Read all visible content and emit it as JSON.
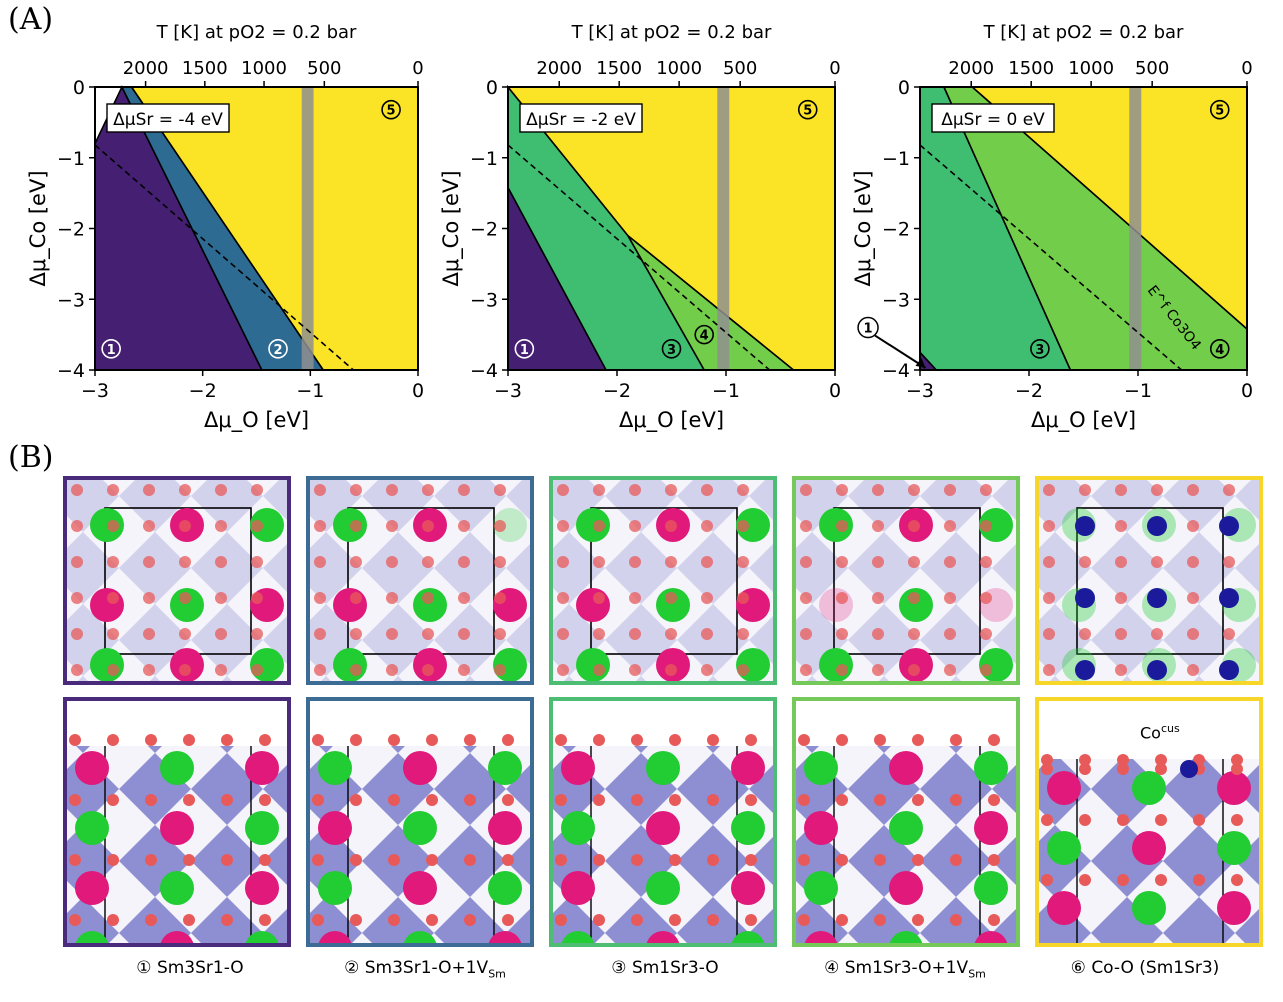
{
  "panelA": {
    "letter": "(A)",
    "top_axis_label": "T [K] at pO2 = 0.2 bar",
    "x_label": "Δμ_O [eV]",
    "y_label": "Δμ_Co [eV]",
    "top_ticks": [
      "2000",
      "1500",
      "1000",
      "500",
      "0"
    ],
    "top_tick_T": [
      2000,
      1500,
      1000,
      500,
      0
    ],
    "x_ticks": [
      "−3",
      "−2",
      "−1",
      "0"
    ],
    "y_ticks": [
      "0",
      "−1",
      "−2",
      "−3",
      "−4"
    ],
    "colors": {
      "phase1": "#451f72",
      "phase2": "#2d6b92",
      "phase3": "#3fbe72",
      "phase4": "#72cd4a",
      "phase5": "#fbe325",
      "band": "#8f8f8f"
    }
  },
  "chart_data": [
    {
      "type": "area",
      "annotation": "ΔμSr = -4 eV",
      "xlim": [
        -3,
        0
      ],
      "ylim": [
        -4,
        0
      ],
      "regions": [
        {
          "label": "1",
          "polygon": [
            [
              -3,
              -4
            ],
            [
              -3,
              -0.8
            ],
            [
              -2.75,
              0
            ],
            [
              -1.45,
              -4
            ]
          ]
        },
        {
          "label": "2",
          "polygon": [
            [
              -2.75,
              0
            ],
            [
              -2.66,
              0
            ],
            [
              -0.88,
              -4
            ],
            [
              -1.45,
              -4
            ]
          ]
        },
        {
          "label": "5",
          "polygon": [
            [
              -2.66,
              0
            ],
            [
              0,
              0
            ],
            [
              0,
              -4
            ],
            [
              -0.88,
              -4
            ]
          ]
        }
      ],
      "dashed_line": [
        [
          -3,
          -0.82
        ],
        [
          -0.6,
          -4
        ]
      ],
      "band_x": [
        -1.08,
        -0.97
      ],
      "region_labels": [
        {
          "label": "1",
          "x": -2.85,
          "y": -3.7
        },
        {
          "label": "2",
          "x": -1.3,
          "y": -3.7
        },
        {
          "label": "5",
          "x": -0.25,
          "y": -0.32
        }
      ]
    },
    {
      "type": "area",
      "annotation": "ΔμSr = -2 eV",
      "xlim": [
        -3,
        0
      ],
      "ylim": [
        -4,
        0
      ],
      "regions": [
        {
          "label": "1",
          "polygon": [
            [
              -3,
              -4
            ],
            [
              -3,
              -1.42
            ],
            [
              -2.1,
              -4
            ]
          ]
        },
        {
          "label": "3",
          "polygon": [
            [
              -3,
              -1.42
            ],
            [
              -3,
              0
            ],
            [
              -1.9,
              -2.1
            ],
            [
              -1.2,
              -4
            ],
            [
              -2.1,
              -4
            ]
          ]
        },
        {
          "label": "4",
          "polygon": [
            [
              -1.9,
              -2.1
            ],
            [
              -0.38,
              -4
            ],
            [
              -1.2,
              -4
            ]
          ]
        },
        {
          "label": "5",
          "polygon": [
            [
              -3,
              0
            ],
            [
              0,
              0
            ],
            [
              0,
              -4
            ],
            [
              -0.38,
              -4
            ],
            [
              -1.9,
              -2.1
            ]
          ]
        }
      ],
      "dashed_line": [
        [
          -3,
          -0.82
        ],
        [
          -0.6,
          -4
        ]
      ],
      "band_x": [
        -1.08,
        -0.97
      ],
      "region_labels": [
        {
          "label": "1",
          "x": -2.85,
          "y": -3.7
        },
        {
          "label": "3",
          "x": -1.5,
          "y": -3.7
        },
        {
          "label": "4",
          "x": -1.2,
          "y": -3.5
        },
        {
          "label": "5",
          "x": -0.25,
          "y": -0.32
        }
      ]
    },
    {
      "type": "area",
      "annotation": "ΔμSr = 0 eV",
      "xlim": [
        -3,
        0
      ],
      "ylim": [
        -4,
        0
      ],
      "regions": [
        {
          "label": "1",
          "polygon": [
            [
              -3,
              -4
            ],
            [
              -3,
              -3.75
            ],
            [
              -2.85,
              -4
            ]
          ]
        },
        {
          "label": "3",
          "polygon": [
            [
              -3,
              -3.75
            ],
            [
              -3,
              0
            ],
            [
              -2.78,
              0
            ],
            [
              -1.62,
              -4
            ],
            [
              -2.85,
              -4
            ]
          ]
        },
        {
          "label": "4",
          "polygon": [
            [
              -2.78,
              0
            ],
            [
              -2.52,
              0
            ],
            [
              0,
              -3.42
            ],
            [
              0,
              -4
            ],
            [
              -1.62,
              -4
            ]
          ]
        },
        {
          "label": "5",
          "polygon": [
            [
              -2.52,
              0
            ],
            [
              0,
              0
            ],
            [
              0,
              -3.42
            ]
          ]
        }
      ],
      "dashed_line": [
        [
          -3,
          -0.82
        ],
        [
          -0.6,
          -4
        ]
      ],
      "band_x": [
        -1.08,
        -0.97
      ],
      "dashed_label": "E^f Co3O4",
      "region_labels": [
        {
          "label": "3",
          "x": -1.9,
          "y": -3.7
        },
        {
          "label": "4",
          "x": -0.25,
          "y": -3.7
        },
        {
          "label": "5",
          "x": -0.25,
          "y": -0.32
        }
      ],
      "callout": {
        "label": "1",
        "from": [
          -3.55,
          -3.4
        ],
        "to": [
          -2.95,
          -3.97
        ]
      }
    }
  ],
  "panelB": {
    "letter": "(B)",
    "tiles": [
      {
        "border": "#4a2a7a",
        "caption_num": "①",
        "caption_main": "Sm3Sr1-O",
        "caption_sub": "",
        "caption_end": ""
      },
      {
        "border": "#3c6c94",
        "caption_num": "②",
        "caption_main": "Sm3Sr1-O+1V",
        "caption_sub": "Sm",
        "caption_end": ""
      },
      {
        "border": "#4dbd74",
        "caption_num": "③",
        "caption_main": "Sm1Sr3-O",
        "caption_sub": "",
        "caption_end": ""
      },
      {
        "border": "#75c95a",
        "caption_num": "④",
        "caption_main": "Sm1Sr3-O+1V",
        "caption_sub": "Sm",
        "caption_end": ""
      },
      {
        "border": "#f6d628",
        "caption_num": "⑥",
        "caption_main": "Co-O (Sm1Sr3)",
        "caption_sub": "",
        "caption_end": ""
      }
    ],
    "cocus_label": "Co",
    "cocus_sup": "cus",
    "atom_colors": {
      "Sm": "#e0197a",
      "Sr": "#22cc33",
      "O": "#e85a5a",
      "Co": "#1a1a9a"
    }
  }
}
